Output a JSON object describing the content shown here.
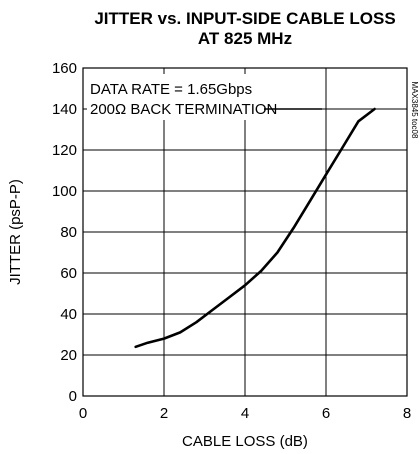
{
  "chart_data": {
    "type": "line",
    "title": "JITTER vs. INPUT-SIDE CABLE LOSS",
    "subtitle": "AT 825 MHz",
    "xlabel": "CABLE LOSS (dB)",
    "ylabel": "JITTER (psP-P)",
    "xlim": [
      0,
      8
    ],
    "ylim": [
      0,
      160
    ],
    "xticks": [
      "0",
      "2",
      "4",
      "6",
      "8"
    ],
    "yticks": [
      "0",
      "20",
      "40",
      "60",
      "80",
      "100",
      "120",
      "140",
      "160"
    ],
    "grid": true,
    "annotations": [
      "DATA RATE = 1.65Gbps",
      "200Ω BACK TERMINATION"
    ],
    "side_label": "MAX3845 toc08",
    "series": [
      {
        "x": [
          1.3,
          1.6,
          2.0,
          2.4,
          2.8,
          3.2,
          3.6,
          4.0,
          4.4,
          4.8,
          5.2,
          5.6,
          6.0,
          6.4,
          6.8,
          7.2
        ],
        "y": [
          24,
          26,
          28,
          31,
          36,
          42,
          48,
          54,
          61,
          70,
          82,
          95,
          108,
          121,
          134,
          140
        ]
      }
    ]
  }
}
